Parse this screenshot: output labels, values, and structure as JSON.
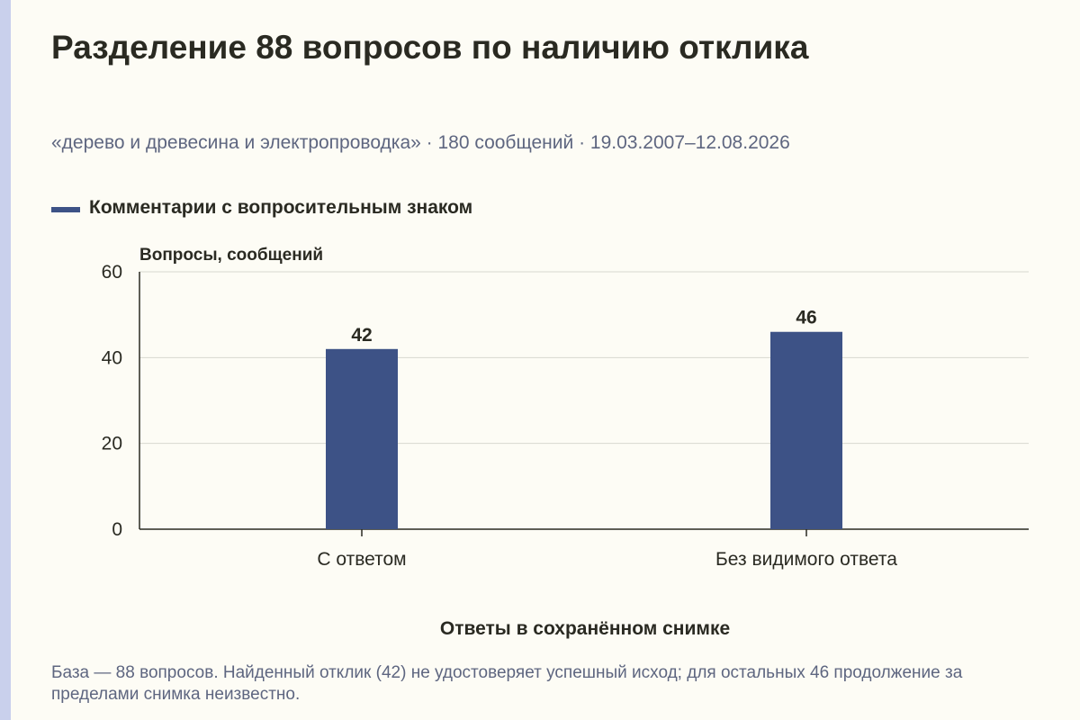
{
  "title": "Разделение 88 вопросов по наличию отклика",
  "subtitle": "«дерево и древесина и электропроводка» · 180 сообщений · 19.03.2007–12.08.2026",
  "footnote": "База — 88 вопросов. Найденный отклик (42) не удостоверяет успешный исход; для остальных 46 продолжение за пределами снимка неизвестно.",
  "colors": {
    "bar": "#3d5286",
    "grid": "#d8d8d0",
    "axis": "#2a2a22",
    "text": "#2a2a22",
    "muted": "#5e6680",
    "accent": "#c9d0ec"
  },
  "chart_data": {
    "type": "bar",
    "categories": [
      "С ответом",
      "Без видимого ответа"
    ],
    "series": [
      {
        "name": "Комментарии с вопросительным знаком",
        "values": [
          42,
          46
        ]
      }
    ],
    "ylabel": "Вопросы, сообщений",
    "xlabel": "Ответы в сохранённом снимке",
    "ylim": [
      0,
      60
    ],
    "yticks": [
      0,
      20,
      40,
      60
    ],
    "grid": true,
    "legend": "top-left",
    "data_labels": true
  }
}
